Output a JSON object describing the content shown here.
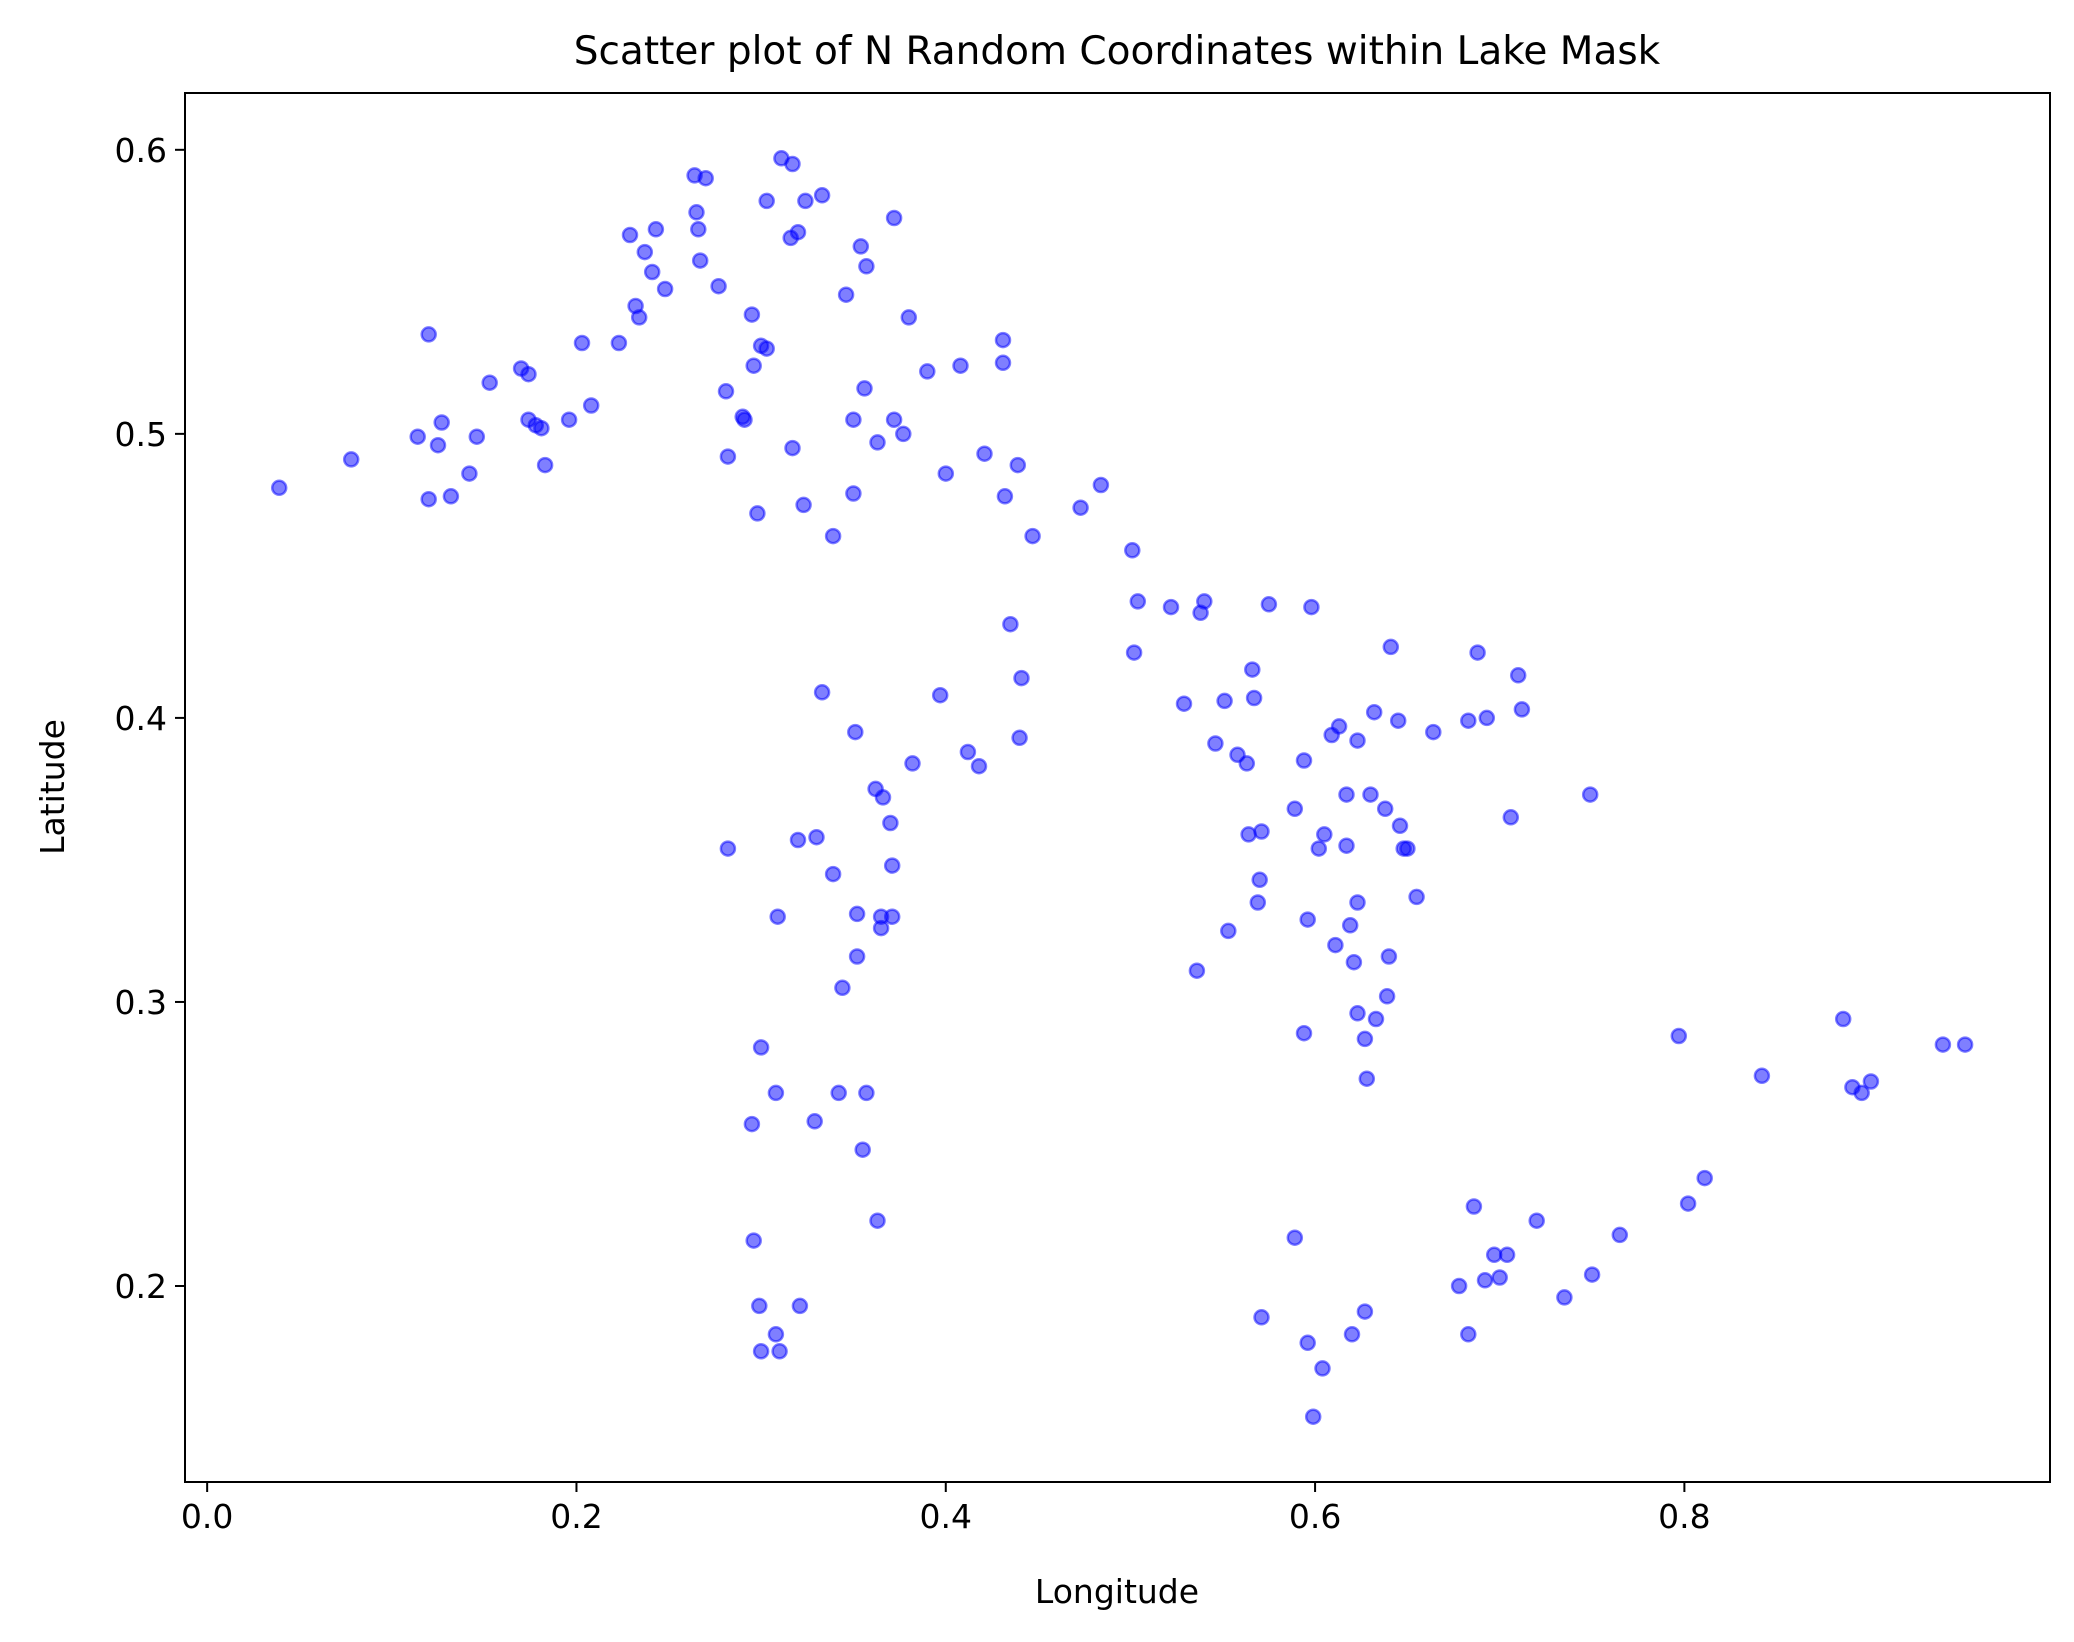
{
  "chart_data": {
    "type": "scatter",
    "title": "Scatter plot of N Random Coordinates within Lake Mask",
    "xlabel": "Longitude",
    "ylabel": "Latitude",
    "xlim": [
      -0.012,
      0.998
    ],
    "ylim": [
      0.131,
      0.62
    ],
    "xticks": [
      0.0,
      0.2,
      0.4,
      0.6,
      0.8
    ],
    "xtick_labels": [
      "0.0",
      "0.2",
      "0.4",
      "0.6",
      "0.8"
    ],
    "yticks": [
      0.2,
      0.3,
      0.4,
      0.5,
      0.6
    ],
    "ytick_labels": [
      "0.2",
      "0.3",
      "0.4",
      "0.5",
      "0.6"
    ],
    "grid": false,
    "legend": null,
    "marker_color": "#0000ff",
    "marker_alpha": 0.5,
    "points": [
      [
        0.039,
        0.481
      ],
      [
        0.078,
        0.491
      ],
      [
        0.114,
        0.499
      ],
      [
        0.12,
        0.535
      ],
      [
        0.12,
        0.477
      ],
      [
        0.125,
        0.496
      ],
      [
        0.127,
        0.504
      ],
      [
        0.132,
        0.478
      ],
      [
        0.142,
        0.486
      ],
      [
        0.146,
        0.499
      ],
      [
        0.153,
        0.518
      ],
      [
        0.17,
        0.523
      ],
      [
        0.174,
        0.521
      ],
      [
        0.174,
        0.505
      ],
      [
        0.178,
        0.503
      ],
      [
        0.181,
        0.502
      ],
      [
        0.183,
        0.489
      ],
      [
        0.196,
        0.505
      ],
      [
        0.203,
        0.532
      ],
      [
        0.208,
        0.51
      ],
      [
        0.223,
        0.532
      ],
      [
        0.229,
        0.57
      ],
      [
        0.232,
        0.545
      ],
      [
        0.234,
        0.541
      ],
      [
        0.237,
        0.564
      ],
      [
        0.241,
        0.557
      ],
      [
        0.243,
        0.572
      ],
      [
        0.248,
        0.551
      ],
      [
        0.264,
        0.591
      ],
      [
        0.265,
        0.578
      ],
      [
        0.266,
        0.572
      ],
      [
        0.267,
        0.561
      ],
      [
        0.27,
        0.59
      ],
      [
        0.277,
        0.552
      ],
      [
        0.281,
        0.515
      ],
      [
        0.282,
        0.492
      ],
      [
        0.282,
        0.354
      ],
      [
        0.29,
        0.506
      ],
      [
        0.291,
        0.505
      ],
      [
        0.295,
        0.542
      ],
      [
        0.296,
        0.524
      ],
      [
        0.298,
        0.472
      ],
      [
        0.3,
        0.531
      ],
      [
        0.303,
        0.53
      ],
      [
        0.303,
        0.582
      ],
      [
        0.311,
        0.597
      ],
      [
        0.316,
        0.569
      ],
      [
        0.317,
        0.595
      ],
      [
        0.317,
        0.495
      ],
      [
        0.32,
        0.571
      ],
      [
        0.323,
        0.475
      ],
      [
        0.324,
        0.582
      ],
      [
        0.333,
        0.584
      ],
      [
        0.339,
        0.464
      ],
      [
        0.346,
        0.549
      ],
      [
        0.35,
        0.505
      ],
      [
        0.35,
        0.479
      ],
      [
        0.354,
        0.566
      ],
      [
        0.356,
        0.516
      ],
      [
        0.357,
        0.559
      ],
      [
        0.363,
        0.497
      ],
      [
        0.372,
        0.576
      ],
      [
        0.372,
        0.505
      ],
      [
        0.377,
        0.5
      ],
      [
        0.38,
        0.541
      ],
      [
        0.39,
        0.522
      ],
      [
        0.4,
        0.486
      ],
      [
        0.408,
        0.524
      ],
      [
        0.421,
        0.493
      ],
      [
        0.431,
        0.533
      ],
      [
        0.431,
        0.525
      ],
      [
        0.432,
        0.478
      ],
      [
        0.439,
        0.489
      ],
      [
        0.447,
        0.464
      ],
      [
        0.473,
        0.474
      ],
      [
        0.484,
        0.482
      ],
      [
        0.501,
        0.459
      ],
      [
        0.502,
        0.423
      ],
      [
        0.504,
        0.441
      ],
      [
        0.522,
        0.439
      ],
      [
        0.529,
        0.405
      ],
      [
        0.538,
        0.437
      ],
      [
        0.54,
        0.441
      ],
      [
        0.546,
        0.391
      ],
      [
        0.551,
        0.406
      ],
      [
        0.553,
        0.325
      ],
      [
        0.558,
        0.387
      ],
      [
        0.563,
        0.384
      ],
      [
        0.566,
        0.417
      ],
      [
        0.567,
        0.407
      ],
      [
        0.575,
        0.44
      ],
      [
        0.598,
        0.439
      ],
      [
        0.435,
        0.433
      ],
      [
        0.441,
        0.414
      ],
      [
        0.44,
        0.393
      ],
      [
        0.333,
        0.409
      ],
      [
        0.397,
        0.408
      ],
      [
        0.351,
        0.395
      ],
      [
        0.412,
        0.388
      ],
      [
        0.418,
        0.383
      ],
      [
        0.382,
        0.384
      ],
      [
        0.362,
        0.375
      ],
      [
        0.366,
        0.372
      ],
      [
        0.37,
        0.363
      ],
      [
        0.32,
        0.357
      ],
      [
        0.33,
        0.358
      ],
      [
        0.339,
        0.345
      ],
      [
        0.371,
        0.348
      ],
      [
        0.309,
        0.33
      ],
      [
        0.352,
        0.331
      ],
      [
        0.365,
        0.33
      ],
      [
        0.371,
        0.33
      ],
      [
        0.365,
        0.326
      ],
      [
        0.352,
        0.316
      ],
      [
        0.344,
        0.305
      ],
      [
        0.3,
        0.284
      ],
      [
        0.308,
        0.268
      ],
      [
        0.342,
        0.268
      ],
      [
        0.357,
        0.268
      ],
      [
        0.295,
        0.257
      ],
      [
        0.329,
        0.258
      ],
      [
        0.355,
        0.248
      ],
      [
        0.363,
        0.223
      ],
      [
        0.296,
        0.216
      ],
      [
        0.299,
        0.193
      ],
      [
        0.321,
        0.193
      ],
      [
        0.308,
        0.183
      ],
      [
        0.3,
        0.177
      ],
      [
        0.31,
        0.177
      ],
      [
        0.536,
        0.311
      ],
      [
        0.564,
        0.359
      ],
      [
        0.569,
        0.335
      ],
      [
        0.57,
        0.343
      ],
      [
        0.571,
        0.36
      ],
      [
        0.589,
        0.368
      ],
      [
        0.594,
        0.385
      ],
      [
        0.594,
        0.289
      ],
      [
        0.596,
        0.329
      ],
      [
        0.602,
        0.354
      ],
      [
        0.605,
        0.359
      ],
      [
        0.609,
        0.394
      ],
      [
        0.611,
        0.32
      ],
      [
        0.613,
        0.397
      ],
      [
        0.617,
        0.373
      ],
      [
        0.617,
        0.355
      ],
      [
        0.619,
        0.327
      ],
      [
        0.621,
        0.314
      ],
      [
        0.623,
        0.335
      ],
      [
        0.623,
        0.392
      ],
      [
        0.623,
        0.296
      ],
      [
        0.627,
        0.287
      ],
      [
        0.628,
        0.273
      ],
      [
        0.63,
        0.373
      ],
      [
        0.632,
        0.402
      ],
      [
        0.633,
        0.294
      ],
      [
        0.638,
        0.368
      ],
      [
        0.639,
        0.302
      ],
      [
        0.64,
        0.316
      ],
      [
        0.641,
        0.425
      ],
      [
        0.645,
        0.399
      ],
      [
        0.646,
        0.362
      ],
      [
        0.648,
        0.354
      ],
      [
        0.65,
        0.354
      ],
      [
        0.655,
        0.337
      ],
      [
        0.664,
        0.395
      ],
      [
        0.683,
        0.399
      ],
      [
        0.688,
        0.423
      ],
      [
        0.693,
        0.4
      ],
      [
        0.706,
        0.365
      ],
      [
        0.71,
        0.415
      ],
      [
        0.712,
        0.403
      ],
      [
        0.749,
        0.373
      ],
      [
        0.589,
        0.217
      ],
      [
        0.571,
        0.189
      ],
      [
        0.596,
        0.18
      ],
      [
        0.604,
        0.171
      ],
      [
        0.599,
        0.154
      ],
      [
        0.62,
        0.183
      ],
      [
        0.627,
        0.191
      ],
      [
        0.678,
        0.2
      ],
      [
        0.683,
        0.183
      ],
      [
        0.686,
        0.228
      ],
      [
        0.692,
        0.202
      ],
      [
        0.697,
        0.211
      ],
      [
        0.7,
        0.203
      ],
      [
        0.704,
        0.211
      ],
      [
        0.72,
        0.223
      ],
      [
        0.735,
        0.196
      ],
      [
        0.75,
        0.204
      ],
      [
        0.765,
        0.218
      ],
      [
        0.797,
        0.288
      ],
      [
        0.802,
        0.229
      ],
      [
        0.811,
        0.238
      ],
      [
        0.842,
        0.274
      ],
      [
        0.886,
        0.294
      ],
      [
        0.891,
        0.27
      ],
      [
        0.896,
        0.268
      ],
      [
        0.901,
        0.272
      ],
      [
        0.94,
        0.285
      ],
      [
        0.952,
        0.285
      ]
    ]
  }
}
